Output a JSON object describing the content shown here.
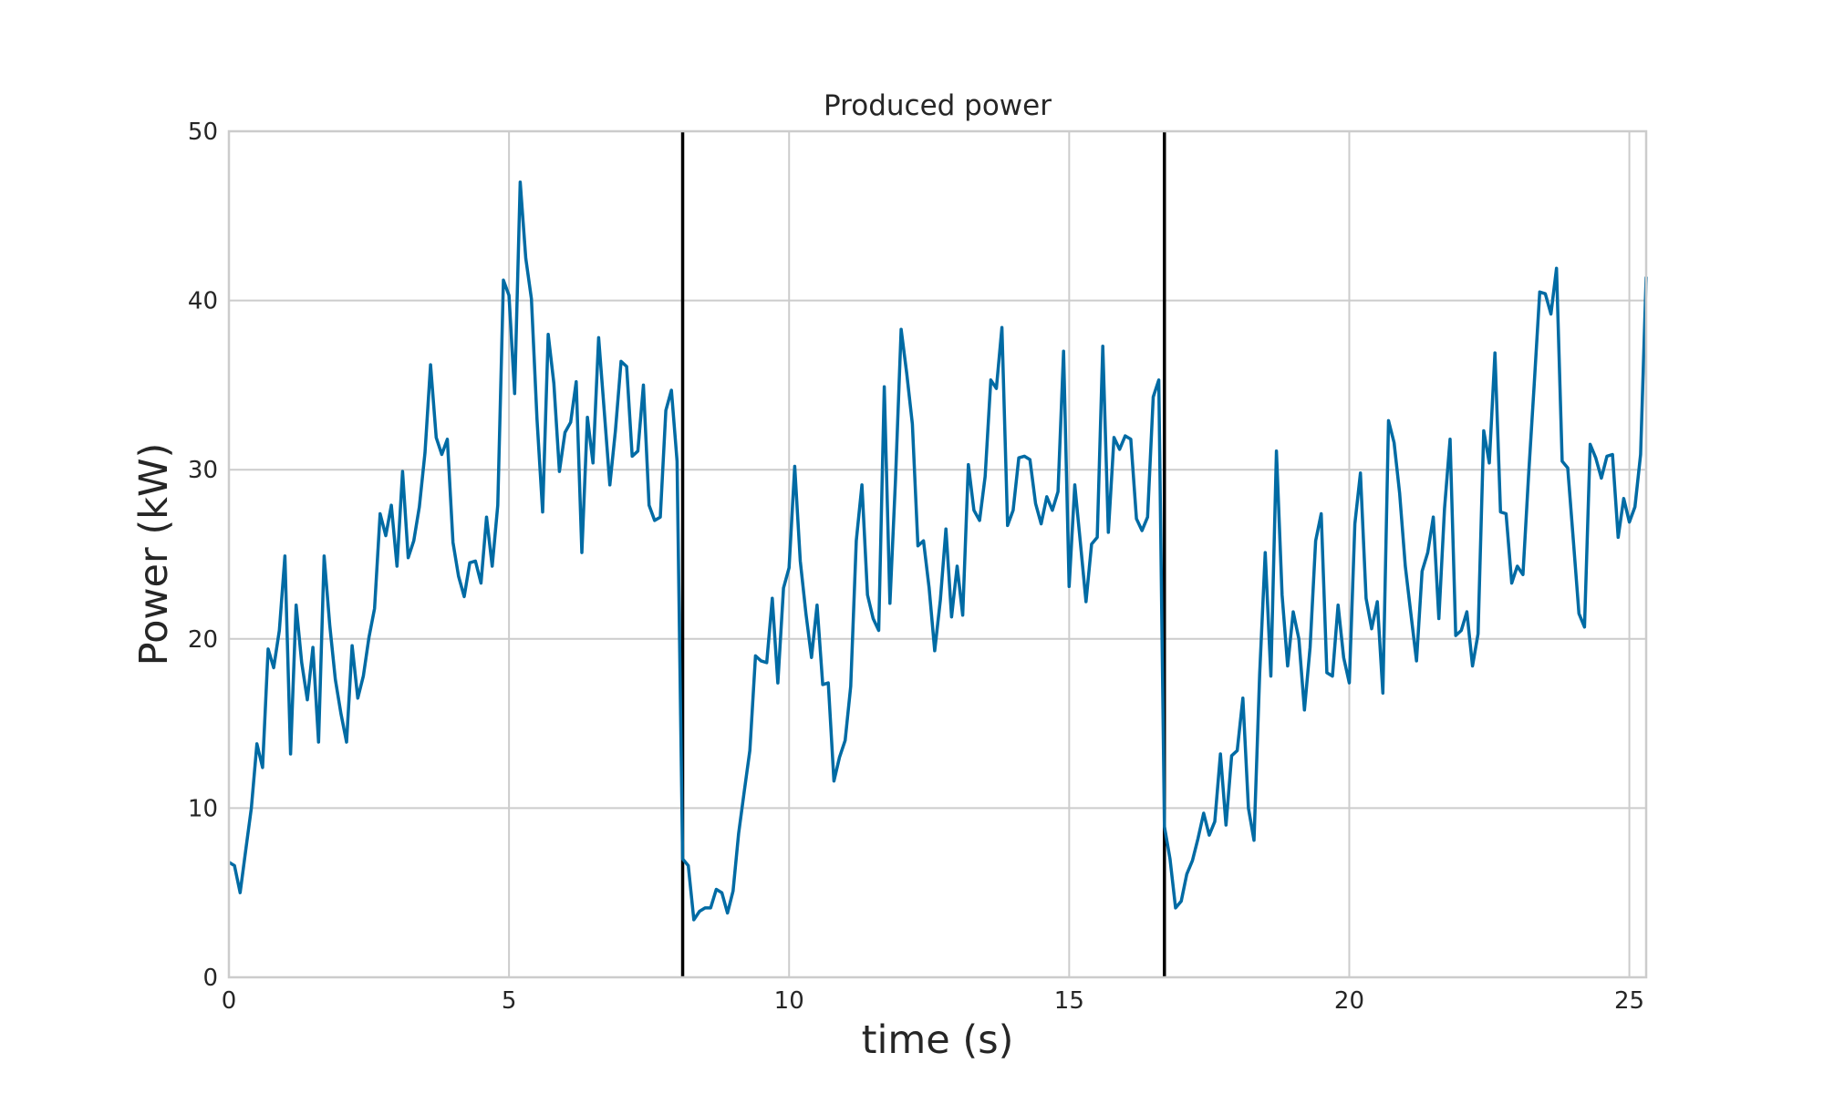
{
  "chart_data": {
    "type": "line",
    "title": "Produced power",
    "xlabel": "time (s)",
    "ylabel": "Power (kW)",
    "xlim": [
      0,
      25.3
    ],
    "ylim": [
      0,
      50
    ],
    "x_ticks": [
      0,
      5,
      10,
      15,
      20,
      25
    ],
    "y_ticks": [
      0,
      10,
      20,
      30,
      40,
      50
    ],
    "grid": true,
    "colors": {
      "series": "#006ba4",
      "markers": "#000000",
      "grid": "#cccccc",
      "text": "#262626"
    },
    "vertical_markers": [
      8.1,
      16.7
    ],
    "series": [
      {
        "x": [
          0,
          0.1,
          0.2,
          0.3,
          0.4,
          0.5,
          0.6,
          0.7,
          0.8,
          0.9,
          1.0,
          1.1,
          1.2,
          1.3,
          1.4,
          1.5,
          1.6,
          1.7,
          1.8,
          1.9,
          2.0,
          2.1,
          2.2,
          2.3,
          2.4,
          2.5,
          2.6,
          2.7,
          2.8,
          2.9,
          3.0,
          3.1,
          3.2,
          3.3,
          3.4,
          3.5,
          3.6,
          3.7,
          3.8,
          3.9,
          4.0,
          4.1,
          4.2,
          4.3,
          4.4,
          4.5,
          4.6,
          4.7,
          4.8,
          4.9,
          5.0,
          5.1,
          5.2,
          5.3,
          5.4,
          5.5,
          5.6,
          5.7,
          5.8,
          5.9,
          6.0,
          6.1,
          6.2,
          6.3,
          6.4,
          6.5,
          6.6,
          6.7,
          6.8,
          6.9,
          7.0,
          7.1,
          7.2,
          7.3,
          7.4,
          7.5,
          7.6,
          7.7,
          7.8,
          7.9,
          8.0,
          8.1,
          8.2,
          8.3,
          8.4,
          8.5,
          8.6,
          8.7,
          8.8,
          8.9,
          9.0,
          9.1,
          9.2,
          9.3,
          9.4,
          9.5,
          9.6,
          9.7,
          9.8,
          9.9,
          10.0,
          10.1,
          10.2,
          10.3,
          10.4,
          10.5,
          10.6,
          10.7,
          10.8,
          10.9,
          11.0,
          11.1,
          11.2,
          11.3,
          11.4,
          11.5,
          11.6,
          11.7,
          11.8,
          11.9,
          12.0,
          12.1,
          12.2,
          12.3,
          12.4,
          12.5,
          12.6,
          12.7,
          12.8,
          12.9,
          13.0,
          13.1,
          13.2,
          13.3,
          13.4,
          13.5,
          13.6,
          13.7,
          13.8,
          13.9,
          14.0,
          14.1,
          14.2,
          14.3,
          14.4,
          14.5,
          14.6,
          14.7,
          14.8,
          14.9,
          15.0,
          15.1,
          15.2,
          15.3,
          15.4,
          15.5,
          15.6,
          15.7,
          15.8,
          15.9,
          16.0,
          16.1,
          16.2,
          16.3,
          16.4,
          16.5,
          16.6,
          16.7,
          16.8,
          16.9,
          17.0,
          17.1,
          17.2,
          17.3,
          17.4,
          17.5,
          17.6,
          17.7,
          17.8,
          17.9,
          18.0,
          18.1,
          18.2,
          18.3,
          18.4,
          18.5,
          18.6,
          18.7,
          18.8,
          18.9,
          19.0,
          19.1,
          19.2,
          19.3,
          19.4,
          19.5,
          19.6,
          19.7,
          19.8,
          19.9,
          20.0,
          20.1,
          20.2,
          20.3,
          20.4,
          20.5,
          20.6,
          20.7,
          20.8,
          20.9,
          21.0,
          21.1,
          21.2,
          21.3,
          21.4,
          21.5,
          21.6,
          21.7,
          21.8,
          21.9,
          22.0,
          22.1,
          22.2,
          22.3,
          22.4,
          22.5,
          22.6,
          22.7,
          22.8,
          22.9,
          23.0,
          23.1,
          23.2,
          23.3,
          23.4,
          23.5,
          23.6,
          23.7,
          23.8,
          23.9,
          24.0,
          24.1,
          24.2,
          24.3,
          24.4,
          24.5,
          24.6,
          24.7,
          24.8,
          24.9,
          25.0,
          25.1,
          25.2,
          25.3
        ],
        "y": [
          6.8,
          6.6,
          5.0,
          7.5,
          10.0,
          13.8,
          12.4,
          19.4,
          18.3,
          20.5,
          24.9,
          13.2,
          22.0,
          18.6,
          16.4,
          19.5,
          13.9,
          24.9,
          20.8,
          17.6,
          15.6,
          13.9,
          19.6,
          16.5,
          17.8,
          20.1,
          21.8,
          27.4,
          26.1,
          27.9,
          24.3,
          29.9,
          24.8,
          25.8,
          27.8,
          31.0,
          36.2,
          31.9,
          30.9,
          31.8,
          25.7,
          23.7,
          22.5,
          24.5,
          24.6,
          23.3,
          27.2,
          24.3,
          27.9,
          41.2,
          40.3,
          34.5,
          47.0,
          42.5,
          40.1,
          33.0,
          27.5,
          38.0,
          35.1,
          29.9,
          32.2,
          32.8,
          35.2,
          25.1,
          33.1,
          30.4,
          37.8,
          33.5,
          29.1,
          32.3,
          36.4,
          36.1,
          30.8,
          31.1,
          35.0,
          27.9,
          27.0,
          27.2,
          33.5,
          34.7,
          30.5,
          7.0,
          6.6,
          3.4,
          3.9,
          4.1,
          4.1,
          5.2,
          5.0,
          3.8,
          5.1,
          8.5,
          11.0,
          13.4,
          19.0,
          18.7,
          18.6,
          22.4,
          17.4,
          23.0,
          24.2,
          30.2,
          24.6,
          21.5,
          18.9,
          22.0,
          17.3,
          17.4,
          11.6,
          13.0,
          14.0,
          17.2,
          25.8,
          29.1,
          22.6,
          21.2,
          20.5,
          34.9,
          22.1,
          29.4,
          38.3,
          35.7,
          32.7,
          25.5,
          25.8,
          23.0,
          19.3,
          22.3,
          26.5,
          21.3,
          24.3,
          21.4,
          30.3,
          27.6,
          27.0,
          29.6,
          35.3,
          34.8,
          38.4,
          26.7,
          27.6,
          30.7,
          30.8,
          30.6,
          28.0,
          26.8,
          28.4,
          27.6,
          28.7,
          37.0,
          23.1,
          29.1,
          25.7,
          22.2,
          25.6,
          26.0,
          37.3,
          26.3,
          31.9,
          31.2,
          32.0,
          31.8,
          27.1,
          26.4,
          27.2,
          34.3,
          35.3,
          8.9,
          7.0,
          4.1,
          4.5,
          6.1,
          6.9,
          8.2,
          9.7,
          8.4,
          9.2,
          13.2,
          9.0,
          13.1,
          13.4,
          16.5,
          10.0,
          8.1,
          17.9,
          25.1,
          17.8,
          31.1,
          22.6,
          18.4,
          21.6,
          20.0,
          15.8,
          19.5,
          25.8,
          27.4,
          18.0,
          17.8,
          22.0,
          18.9,
          17.4,
          26.8,
          29.8,
          22.4,
          20.6,
          22.2,
          16.8,
          32.9,
          31.6,
          28.6,
          24.3,
          21.5,
          18.7,
          24.0,
          25.1,
          27.2,
          21.2,
          27.7,
          31.8,
          20.2,
          20.5,
          21.6,
          18.4,
          20.3,
          32.3,
          30.4,
          36.9,
          27.5,
          27.4,
          23.3,
          24.3,
          23.8,
          29.6,
          35.0,
          40.5,
          40.4,
          39.2,
          41.9,
          30.5,
          30.1,
          25.8,
          21.5,
          20.7,
          31.5,
          30.7,
          29.5,
          30.8,
          30.9,
          26.0,
          28.3,
          26.9,
          27.8,
          30.9,
          41.4
        ]
      }
    ]
  }
}
